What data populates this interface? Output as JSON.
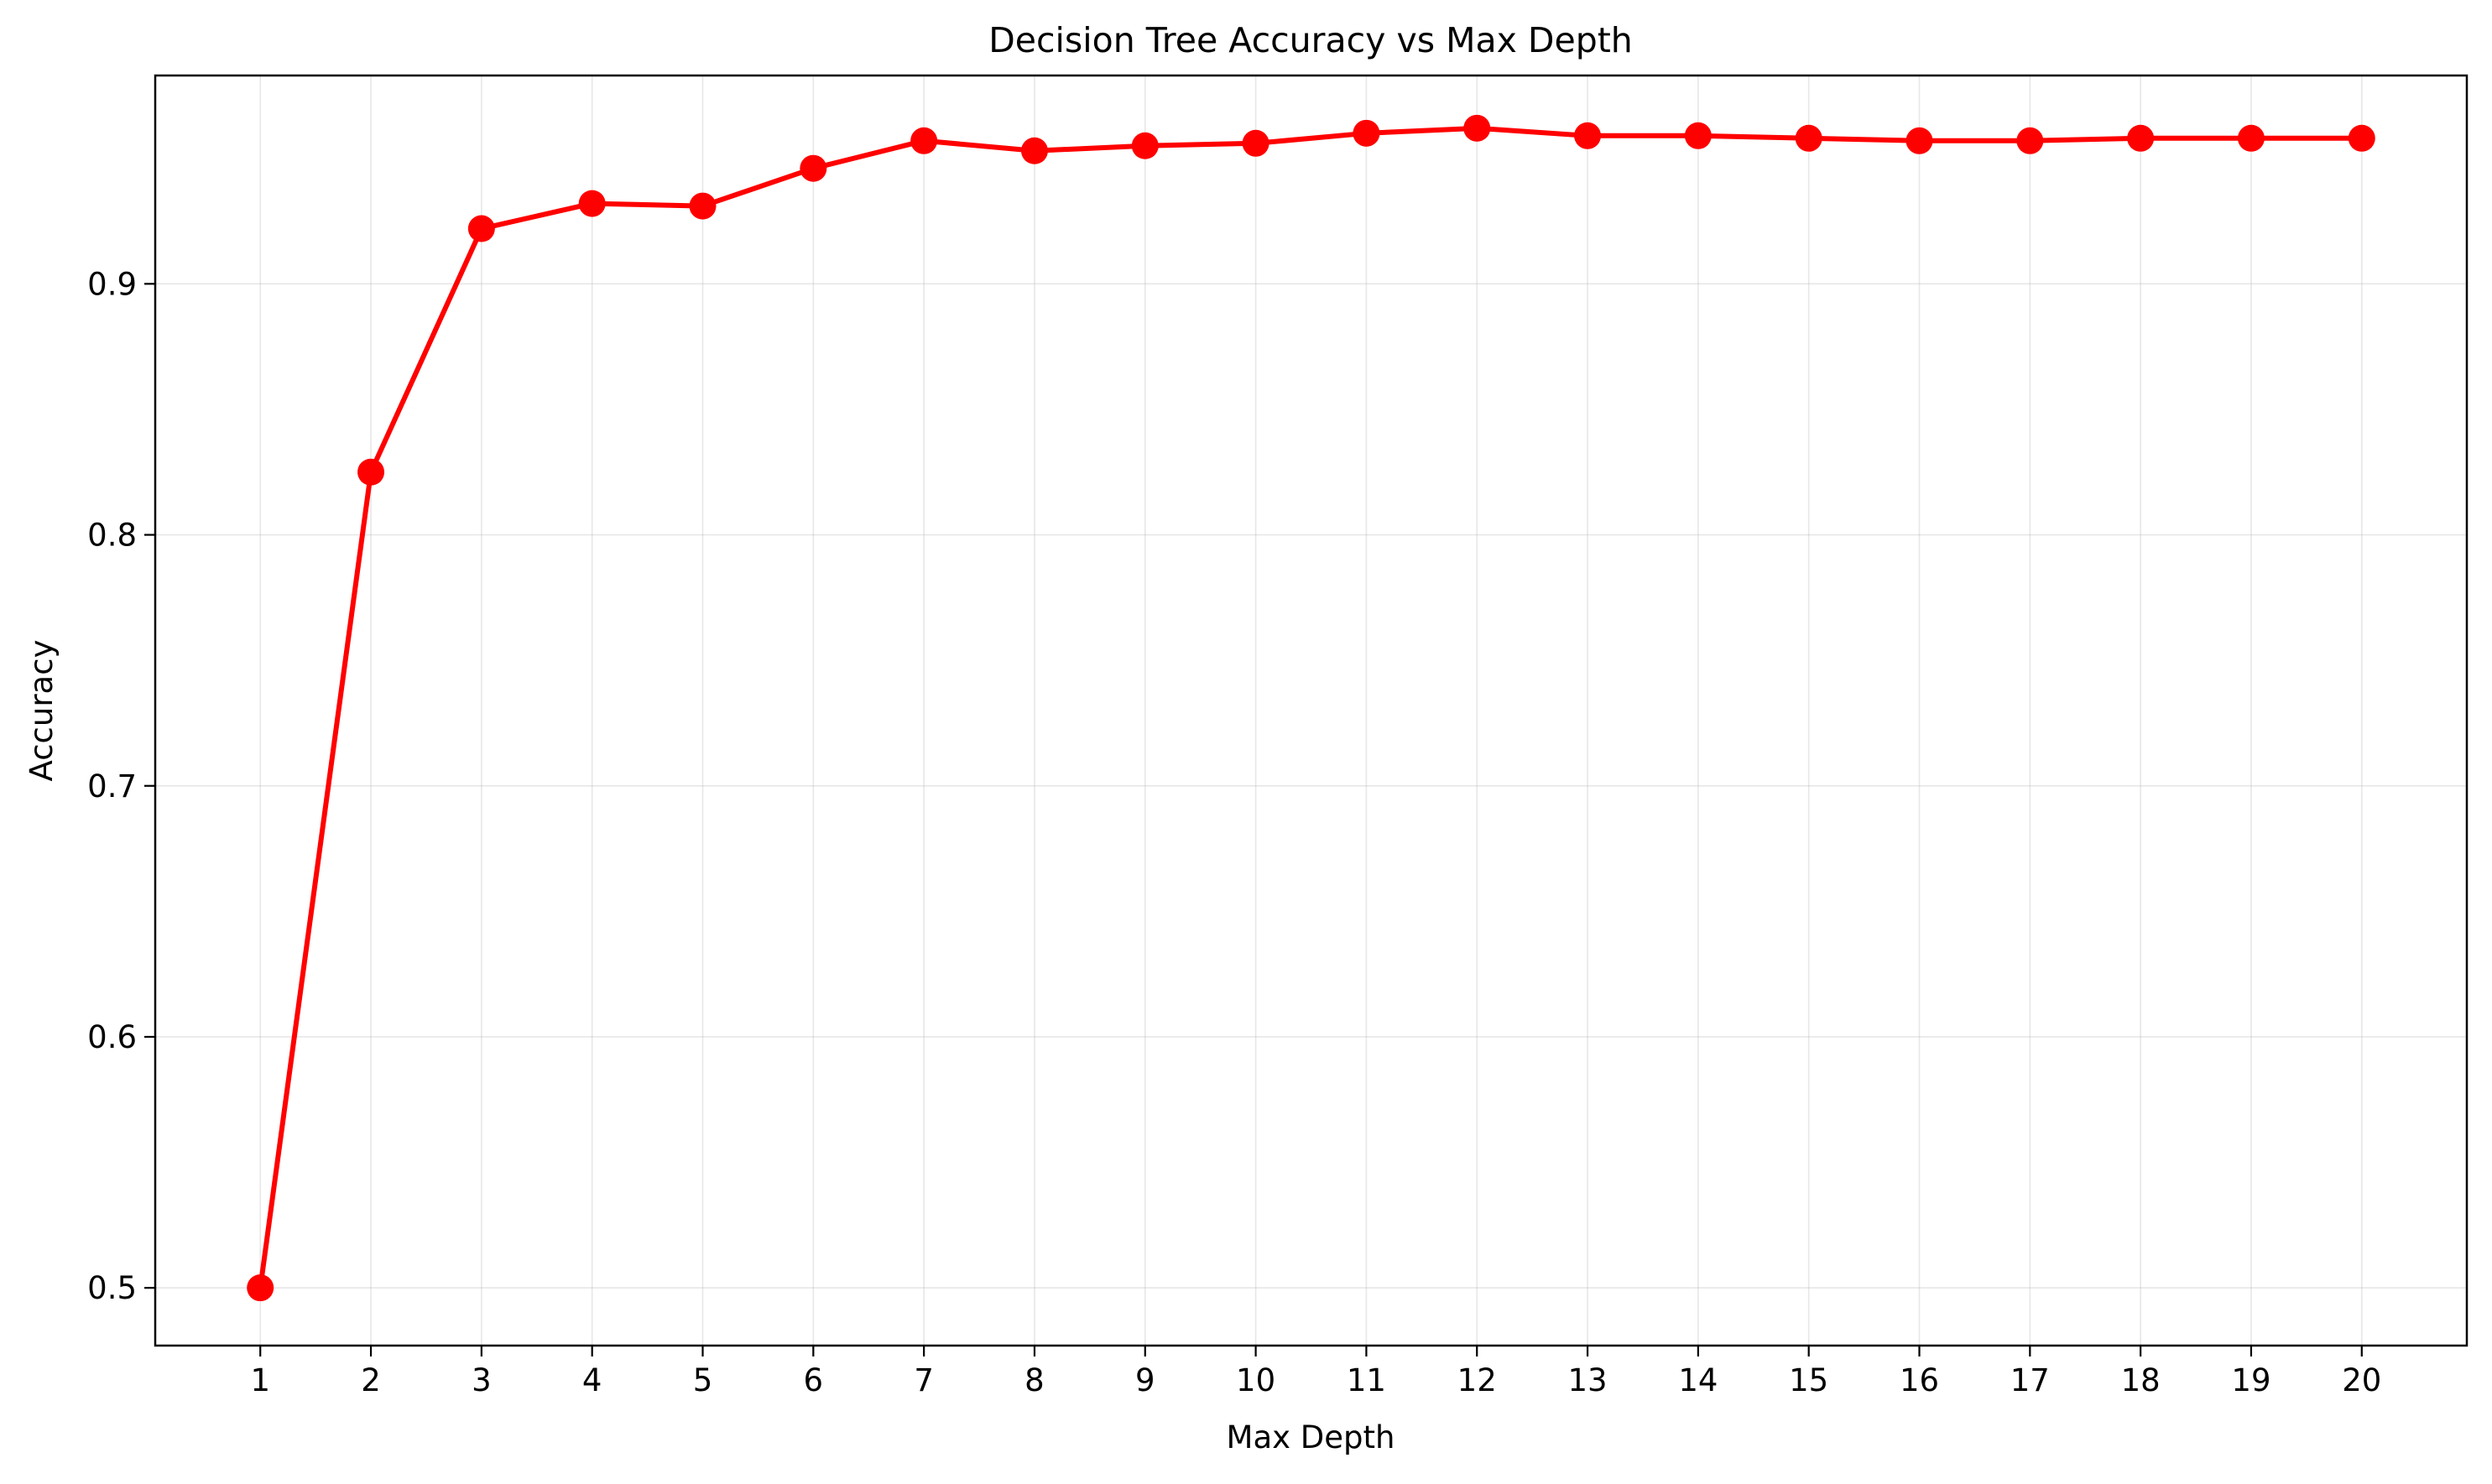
{
  "chart_data": {
    "type": "line",
    "title": "Decision Tree Accuracy vs Max Depth",
    "xlabel": "Max Depth",
    "ylabel": "Accuracy",
    "x": [
      1,
      2,
      3,
      4,
      5,
      6,
      7,
      8,
      9,
      10,
      11,
      12,
      13,
      14,
      15,
      16,
      17,
      18,
      19,
      20
    ],
    "series": [
      {
        "values": [
          0.5,
          0.825,
          0.922,
          0.932,
          0.931,
          0.946,
          0.957,
          0.953,
          0.955,
          0.956,
          0.96,
          0.962,
          0.959,
          0.959,
          0.958,
          0.957,
          0.957,
          0.958,
          0.958,
          0.958
        ],
        "color": "#ff0000",
        "marker": "circle"
      }
    ],
    "xticks": [
      "1",
      "2",
      "3",
      "4",
      "5",
      "6",
      "7",
      "8",
      "9",
      "10",
      "11",
      "12",
      "13",
      "14",
      "15",
      "16",
      "17",
      "18",
      "19",
      "20"
    ],
    "yticks": [
      "0.5",
      "0.6",
      "0.7",
      "0.8",
      "0.9"
    ],
    "ytick_values": [
      0.5,
      0.6,
      0.7,
      0.8,
      0.9
    ],
    "xlim": [
      0.05,
      20.95
    ],
    "ylim": [
      0.477,
      0.983
    ],
    "grid": true,
    "legend": "none"
  }
}
